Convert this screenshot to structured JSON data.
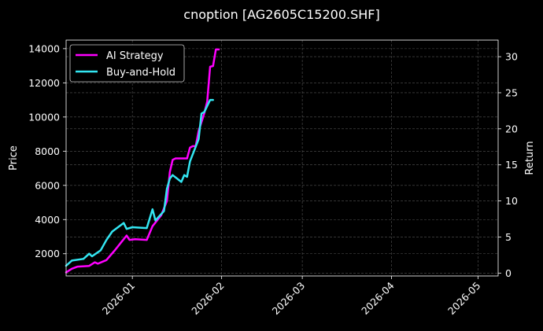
{
  "chart_data": {
    "type": "line",
    "title": "cnoption [AG2605C15200.SHF]",
    "ylabel_left": "Price",
    "ylabel_right": "Return",
    "xlim": [
      "2025-12-09",
      "2026-05-08"
    ],
    "ylim_left": [
      700,
      14500
    ],
    "ylim_right": [
      -0.4,
      32.3
    ],
    "x_ticks": [
      "2026-01",
      "2026-02",
      "2026-03",
      "2026-04",
      "2026-05"
    ],
    "x_tick_dates": [
      "2026-01-01",
      "2026-02-01",
      "2026-03-01",
      "2026-04-01",
      "2026-05-01"
    ],
    "y_ticks_left": [
      2000,
      4000,
      6000,
      8000,
      10000,
      12000,
      14000
    ],
    "y_ticks_right": [
      0,
      5,
      10,
      15,
      20,
      25,
      30
    ],
    "grid": true,
    "legend_position": "top-left",
    "series": [
      {
        "name": "AI Strategy",
        "axis": "right",
        "color": "#ff00ff",
        "points": [
          [
            "2025-12-09",
            0.1
          ],
          [
            "2025-12-11",
            0.6
          ],
          [
            "2025-12-13",
            0.9
          ],
          [
            "2025-12-17",
            1.0
          ],
          [
            "2025-12-19",
            1.5
          ],
          [
            "2025-12-20",
            1.3
          ],
          [
            "2025-12-23",
            1.8
          ],
          [
            "2025-12-26",
            3.2
          ],
          [
            "2025-12-28",
            4.2
          ],
          [
            "2025-12-30",
            5.2
          ],
          [
            "2025-12-31",
            4.6
          ],
          [
            "2026-01-02",
            4.7
          ],
          [
            "2026-01-06",
            4.6
          ],
          [
            "2026-01-08",
            6.5
          ],
          [
            "2026-01-11",
            8.0
          ],
          [
            "2026-01-13",
            10.0
          ],
          [
            "2026-01-14",
            14.0
          ],
          [
            "2026-01-15",
            15.7
          ],
          [
            "2026-01-16",
            15.9
          ],
          [
            "2026-01-19",
            15.9
          ],
          [
            "2026-01-20",
            15.9
          ],
          [
            "2026-01-21",
            17.4
          ],
          [
            "2026-01-22",
            17.6
          ],
          [
            "2026-01-23",
            17.6
          ],
          [
            "2026-01-24",
            19.7
          ],
          [
            "2026-01-26",
            22.2
          ],
          [
            "2026-01-27",
            23.8
          ],
          [
            "2026-01-28",
            28.6
          ],
          [
            "2026-01-29",
            28.7
          ],
          [
            "2026-01-30",
            31.0
          ],
          [
            "2026-01-31",
            31.0
          ]
        ]
      },
      {
        "name": "Buy-and-Hold",
        "axis": "left",
        "color": "#33e6f2",
        "points": [
          [
            "2025-12-09",
            1300
          ],
          [
            "2025-12-11",
            1600
          ],
          [
            "2025-12-15",
            1700
          ],
          [
            "2025-12-17",
            2000
          ],
          [
            "2025-12-18",
            1850
          ],
          [
            "2025-12-21",
            2200
          ],
          [
            "2025-12-23",
            2800
          ],
          [
            "2025-12-25",
            3300
          ],
          [
            "2025-12-29",
            3800
          ],
          [
            "2025-12-30",
            3450
          ],
          [
            "2026-01-01",
            3550
          ],
          [
            "2026-01-06",
            3500
          ],
          [
            "2026-01-08",
            4600
          ],
          [
            "2026-01-09",
            3950
          ],
          [
            "2026-01-12",
            4500
          ],
          [
            "2026-01-13",
            5800
          ],
          [
            "2026-01-14",
            6400
          ],
          [
            "2026-01-15",
            6600
          ],
          [
            "2026-01-18",
            6200
          ],
          [
            "2026-01-19",
            6600
          ],
          [
            "2026-01-20",
            6500
          ],
          [
            "2026-01-21",
            7400
          ],
          [
            "2026-01-24",
            8700
          ],
          [
            "2026-01-25",
            10200
          ],
          [
            "2026-01-26",
            10300
          ],
          [
            "2026-01-28",
            11000
          ],
          [
            "2026-01-29",
            11000
          ]
        ]
      }
    ]
  }
}
